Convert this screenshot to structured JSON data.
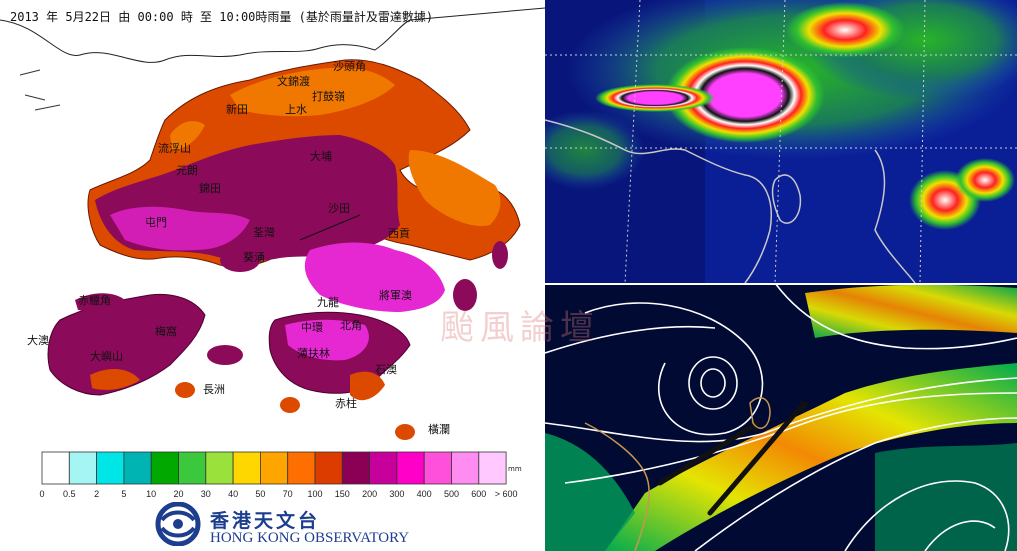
{
  "rain_map": {
    "title": "2013 年  5月22日 由 00:00 時 至 10:00時雨量 (基於雨量計及雷達數據)",
    "places": [
      "沙頭角",
      "文錦渡",
      "打鼓嶺",
      "新田",
      "上水",
      "流浮山",
      "元朗",
      "錦田",
      "大埔",
      "屯門",
      "荃灣",
      "沙田",
      "西貢",
      "葵涌",
      "赤鱲角",
      "大嶼山",
      "大澳",
      "梅窩",
      "長洲",
      "將軍澳",
      "九龍",
      "中環",
      "北角",
      "薄扶林",
      "赤柱",
      "石澳",
      "橫瀾"
    ],
    "legend": {
      "unit": "mm",
      "colors": [
        "#ffffff",
        "#a5f5f5",
        "#00e5e5",
        "#00b4b4",
        "#00a800",
        "#3cc83c",
        "#9be13c",
        "#ffd700",
        "#ffa500",
        "#ff6e00",
        "#dc3c00",
        "#8b0055",
        "#c8009b",
        "#ff00c8",
        "#ff50dc",
        "#ff8cf0",
        "#ffc8ff"
      ],
      "labels": [
        "0",
        "0.5",
        "2",
        "5",
        "10",
        "20",
        "30",
        "40",
        "50",
        "70",
        "100",
        "150",
        "200",
        "300",
        "400",
        "500",
        "600",
        "> 600"
      ]
    },
    "logo": {
      "chinese": "香港天文台",
      "english": "HONG KONG OBSERVATORY"
    }
  },
  "watermark": "颱風論壇"
}
